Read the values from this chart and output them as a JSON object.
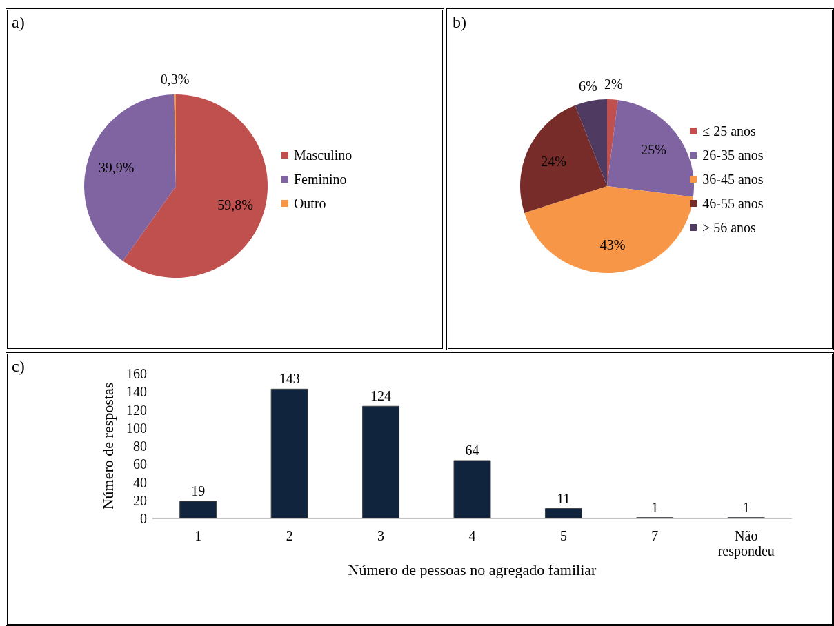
{
  "chart_data": [
    {
      "type": "pie",
      "annotations": [
        "a)"
      ],
      "categories": [
        "Masculino",
        "Feminino",
        "Outro"
      ],
      "values": [
        59.8,
        39.9,
        0.3
      ],
      "colors": [
        "#c0504d",
        "#8064a2",
        "#f79646"
      ],
      "value_labels": [
        "59,8%",
        "39,9%",
        "0,3%"
      ],
      "legend": "right"
    },
    {
      "type": "pie",
      "annotations": [
        "b)"
      ],
      "categories": [
        "≤ 25 anos",
        "26-35 anos",
        "36-45 anos",
        "46-55 anos",
        "≥ 56 anos"
      ],
      "values": [
        2,
        25,
        43,
        24,
        6
      ],
      "colors": [
        "#c0504d",
        "#8064a2",
        "#f79646",
        "#772c2a",
        "#4f3b62"
      ],
      "value_labels": [
        "2%",
        "25%",
        "43%",
        "24%",
        "6%"
      ],
      "legend": "right"
    },
    {
      "type": "bar",
      "annotations": [
        "c)"
      ],
      "categories": [
        "1",
        "2",
        "3",
        "4",
        "5",
        "7",
        "Não respondeu"
      ],
      "values": [
        19,
        143,
        124,
        64,
        11,
        1,
        1
      ],
      "color": "#10243e",
      "ylim": [
        0,
        160
      ],
      "yticks": [
        0,
        20,
        40,
        60,
        80,
        100,
        120,
        140,
        160
      ],
      "data_labels": true,
      "xlabel": "Número de pessoas no agregado familiar",
      "ylabel": "Número de respostas"
    }
  ]
}
